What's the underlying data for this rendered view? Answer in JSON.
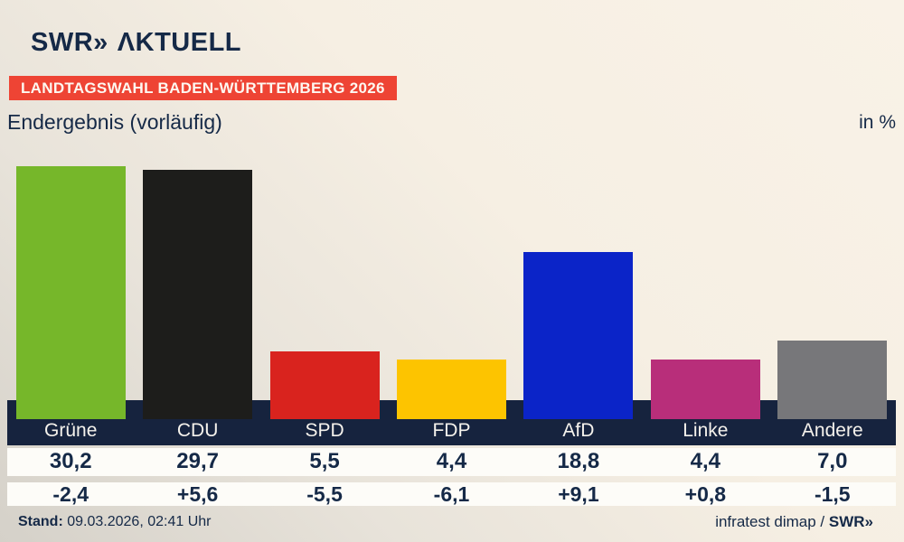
{
  "header": {
    "logo": {
      "part1": "SWR»",
      "part2": "ΛKTUELL"
    },
    "banner": "LANDTAGSWAHL BADEN-WÜRTTEMBERG 2026",
    "subtitle": "Endergebnis (vorläufig)",
    "unit_label": "in %"
  },
  "chart_data": {
    "type": "bar",
    "title": "Endergebnis (vorläufig)",
    "subtitle_context": "Landtagswahl Baden-Württemberg 2026",
    "unit": "in %",
    "categories": [
      "Grüne",
      "CDU",
      "SPD",
      "FDP",
      "AfD",
      "Linke",
      "Andere"
    ],
    "values": [
      30.2,
      29.7,
      5.5,
      4.4,
      18.8,
      4.4,
      7.0
    ],
    "value_labels": [
      "30,2",
      "29,7",
      "5,5",
      "4,4",
      "18,8",
      "4,4",
      "7,0"
    ],
    "change_labels": [
      "-2,4",
      "+5,6",
      "-5,5",
      "-6,1",
      "+9,1",
      "+0,8",
      "-1,5"
    ],
    "bar_colors": [
      "#76b72a",
      "#1d1d1b",
      "#d9231e",
      "#fdc400",
      "#0b24c8",
      "#b82e7a",
      "#77777a"
    ],
    "ylim": [
      0,
      33
    ],
    "xlabel": "",
    "ylabel": "",
    "grid": false,
    "legend_position": "none"
  },
  "colors": {
    "background_light": "#f6efe3",
    "background_dark": "#d5d1c9",
    "banner_red": "#ee4434",
    "band_navy": "#16233e",
    "text_navy": "#152947",
    "row_white": "#fdfcf8"
  },
  "footer": {
    "stand_label": "Stand:",
    "stand_value": "09.03.2026, 02:41 Uhr",
    "source": "infratest dimap / ",
    "source_brand": "SWR»"
  }
}
